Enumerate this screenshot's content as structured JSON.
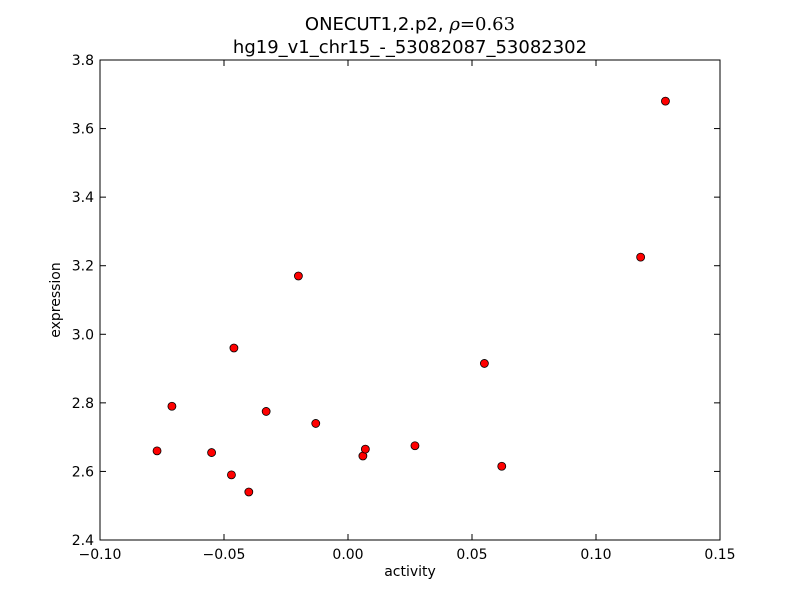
{
  "chart_data": {
    "type": "scatter",
    "title_line1_prefix": "ONECUT1,2.p2, ",
    "title_line1_rho": "ρ",
    "title_line1_value": "=0.63",
    "title_line2": "hg19_v1_chr15_-_53082087_53082302",
    "xlabel": "activity",
    "ylabel": "expression",
    "xlim": [
      -0.1,
      0.15
    ],
    "ylim": [
      2.4,
      3.8
    ],
    "xticks": [
      -0.1,
      -0.05,
      0.0,
      0.05,
      0.1,
      0.15
    ],
    "xtick_labels": [
      "−0.10",
      "−0.05",
      "0.00",
      "0.05",
      "0.10",
      "0.15"
    ],
    "yticks": [
      2.4,
      2.6,
      2.8,
      3.0,
      3.2,
      3.4,
      3.6,
      3.8
    ],
    "ytick_labels": [
      "2.4",
      "2.6",
      "2.8",
      "3.0",
      "3.2",
      "3.4",
      "3.6",
      "3.8"
    ],
    "grid": false,
    "marker_color": "#ff0000",
    "points": [
      {
        "x": -0.077,
        "y": 2.66
      },
      {
        "x": -0.071,
        "y": 2.79
      },
      {
        "x": -0.055,
        "y": 2.655
      },
      {
        "x": -0.047,
        "y": 2.59
      },
      {
        "x": -0.046,
        "y": 2.96
      },
      {
        "x": -0.04,
        "y": 2.54
      },
      {
        "x": -0.033,
        "y": 2.775
      },
      {
        "x": -0.02,
        "y": 3.17
      },
      {
        "x": -0.013,
        "y": 2.74
      },
      {
        "x": 0.006,
        "y": 2.645
      },
      {
        "x": 0.007,
        "y": 2.665
      },
      {
        "x": 0.027,
        "y": 2.675
      },
      {
        "x": 0.055,
        "y": 2.915
      },
      {
        "x": 0.062,
        "y": 2.615
      },
      {
        "x": 0.118,
        "y": 3.225
      },
      {
        "x": 0.128,
        "y": 3.68
      }
    ]
  }
}
